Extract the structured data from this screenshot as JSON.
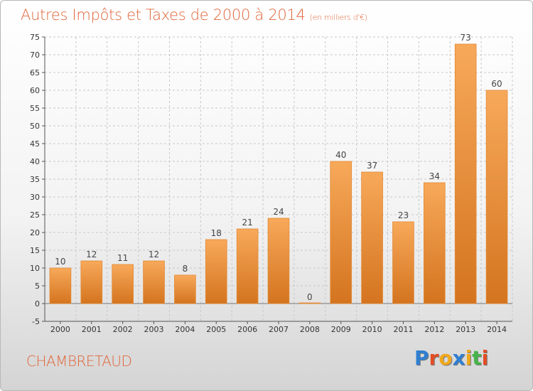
{
  "title": "Autres Impôts et Taxes de 2000 à 2014",
  "subtitle": "(en milliers d'€)",
  "location": "CHAMBRETAUD",
  "logo": {
    "letters": [
      "P",
      "r",
      "o",
      "x",
      "i",
      "t",
      "i"
    ],
    "colors": [
      "#2f7fd1",
      "#e44d26",
      "#f0a81c",
      "#2f7fd1",
      "#f0a81c",
      "#45b549",
      "#e44d26"
    ]
  },
  "colors": {
    "bar": "#f09a45",
    "bar_dark": "#d8782a",
    "grid": "#c8c8c8",
    "accent": "#e0663a"
  },
  "chart_data": {
    "type": "bar",
    "title": "Autres Impôts et Taxes de 2000 à 2014",
    "subtitle": "(en milliers d'€)",
    "categories": [
      "2000",
      "2001",
      "2002",
      "2003",
      "2004",
      "2005",
      "2006",
      "2007",
      "2008",
      "2009",
      "2010",
      "2011",
      "2012",
      "2013",
      "2014"
    ],
    "values": [
      10,
      12,
      11,
      12,
      8,
      18,
      21,
      24,
      0,
      40,
      37,
      23,
      34,
      73,
      60
    ],
    "ylim": [
      -5,
      75
    ],
    "yticks": [
      -5,
      0,
      5,
      10,
      15,
      20,
      25,
      30,
      35,
      40,
      45,
      50,
      55,
      60,
      65,
      70,
      75
    ],
    "grid": true,
    "xlabel": "",
    "ylabel": ""
  }
}
